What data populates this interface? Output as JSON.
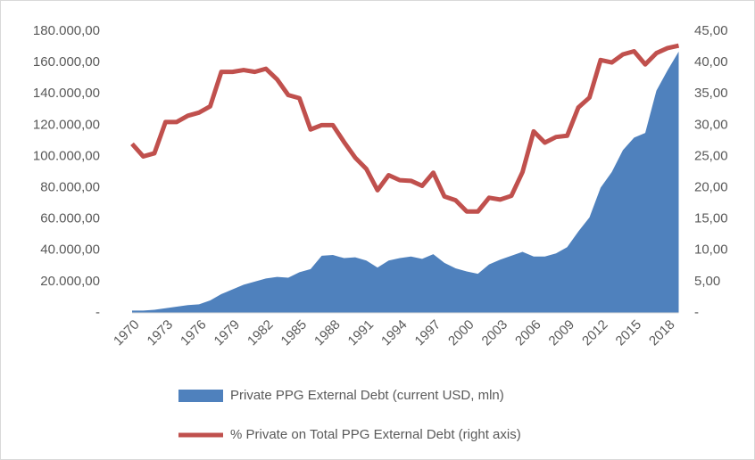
{
  "chart_data": {
    "type": "area-line",
    "x": [
      1970,
      1971,
      1972,
      1973,
      1974,
      1975,
      1976,
      1977,
      1978,
      1979,
      1980,
      1981,
      1982,
      1983,
      1984,
      1985,
      1986,
      1987,
      1988,
      1989,
      1990,
      1991,
      1992,
      1993,
      1994,
      1995,
      1996,
      1997,
      1998,
      1999,
      2000,
      2001,
      2002,
      2003,
      2004,
      2005,
      2006,
      2007,
      2008,
      2009,
      2010,
      2011,
      2012,
      2013,
      2014,
      2015,
      2016,
      2017,
      2018,
      2019
    ],
    "xlim": [
      1970,
      2019
    ],
    "xticks": [
      1970,
      1973,
      1976,
      1979,
      1982,
      1985,
      1988,
      1991,
      1994,
      1997,
      2000,
      2003,
      2006,
      2009,
      2012,
      2015,
      2018
    ],
    "series": [
      {
        "name": "Private PPG External Debt (current USD, mln)",
        "color": "#4f81bd",
        "kind": "area",
        "axis": "y",
        "values": [
          1500,
          1500,
          2000,
          3000,
          4000,
          5000,
          5500,
          8000,
          12000,
          15000,
          18000,
          20000,
          22000,
          23000,
          22500,
          26000,
          28000,
          36500,
          37000,
          35000,
          35500,
          33500,
          29000,
          33500,
          35000,
          36000,
          34500,
          37500,
          32000,
          28500,
          26500,
          25000,
          31000,
          34000,
          36500,
          39000,
          36000,
          36000,
          38000,
          42000,
          52000,
          61000,
          80000,
          90000,
          104000,
          112000,
          115000,
          142000,
          155000,
          167000
        ]
      },
      {
        "name": "% Private on Total PPG External Debt (right axis)",
        "color": "#c0504d",
        "kind": "line",
        "axis": "y2",
        "values": [
          27,
          25,
          25.5,
          30.5,
          30.5,
          31.5,
          32,
          33,
          38.5,
          38.5,
          38.8,
          38.5,
          39,
          37.3,
          34.8,
          34.3,
          29.3,
          30,
          30,
          27.3,
          24.8,
          23,
          19.6,
          22,
          21.2,
          21.1,
          20.3,
          22.4,
          18.6,
          18,
          16.2,
          16.2,
          18.4,
          18.1,
          18.7,
          22.5,
          29,
          27.2,
          28.1,
          28.3,
          32.8,
          34.4,
          40.4,
          40,
          41.3,
          41.8,
          39.7,
          41.5,
          42.3,
          42.7
        ]
      }
    ],
    "ylim": [
      0,
      180000
    ],
    "yticks": [
      {
        "value": 0,
        "label": "-"
      },
      {
        "value": 20000,
        "label": "20.000,00"
      },
      {
        "value": 40000,
        "label": "40.000,00"
      },
      {
        "value": 60000,
        "label": "60.000,00"
      },
      {
        "value": 80000,
        "label": "80.000,00"
      },
      {
        "value": 100000,
        "label": "100.000,00"
      },
      {
        "value": 120000,
        "label": "120.000,00"
      },
      {
        "value": 140000,
        "label": "140.000,00"
      },
      {
        "value": 160000,
        "label": "160.000,00"
      },
      {
        "value": 180000,
        "label": "180.000,00"
      }
    ],
    "y2lim": [
      0,
      45
    ],
    "y2ticks": [
      {
        "value": 0,
        "label": "-"
      },
      {
        "value": 5,
        "label": "5,00"
      },
      {
        "value": 10,
        "label": "10,00"
      },
      {
        "value": 15,
        "label": "15,00"
      },
      {
        "value": 20,
        "label": "20,00"
      },
      {
        "value": 25,
        "label": "25,00"
      },
      {
        "value": 30,
        "label": "30,00"
      },
      {
        "value": 35,
        "label": "35,00"
      },
      {
        "value": 40,
        "label": "40,00"
      },
      {
        "value": 45,
        "label": "45,00"
      }
    ],
    "grid": false
  }
}
